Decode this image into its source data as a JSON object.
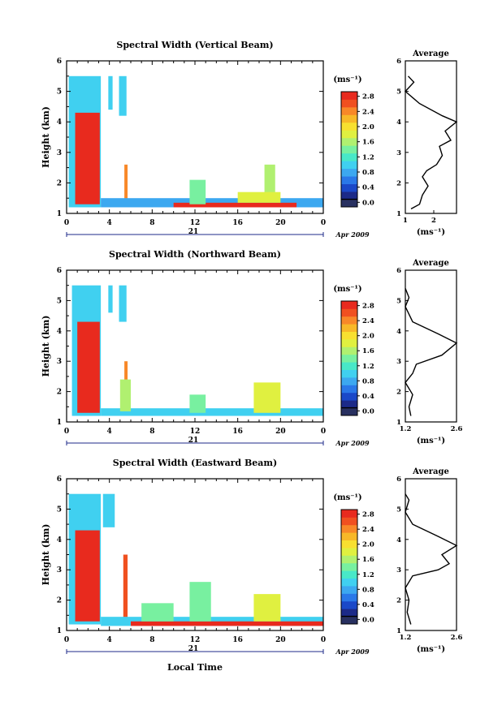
{
  "figure": {
    "x_axis_title": "Local Time",
    "date_label": "21",
    "month_label": "Apr 2009",
    "colorbar_unit": "(ms⁻¹)",
    "average_title": "Average",
    "average_unit": "(ms⁻¹)",
    "colorbar_ticks": [
      "0.0",
      "0.4",
      "0.8",
      "1.2",
      "1.6",
      "2.0",
      "2.4",
      "2.8"
    ],
    "colormap": [
      "#283060",
      "#1c2a88",
      "#1a48c8",
      "#2a78e8",
      "#3ca8f0",
      "#40d0f0",
      "#48e8c8",
      "#78f0a0",
      "#b0f070",
      "#e0f040",
      "#f8e030",
      "#f8b828",
      "#f88828",
      "#f05020",
      "#e82a1e"
    ]
  },
  "chart_data": [
    {
      "type": "heatmap",
      "title": "Spectral Width (Vertical Beam)",
      "ylabel": "Height (km)",
      "xlabel": "Local Time",
      "xlim": [
        0,
        24
      ],
      "ylim": [
        1,
        6
      ],
      "xticks": [
        "0",
        "4",
        "8",
        "12",
        "16",
        "20",
        "0"
      ],
      "yticks": [
        "1",
        "2",
        "3",
        "4",
        "5",
        "6"
      ],
      "colorbar_range": [
        0,
        2.8
      ],
      "regions": [
        {
          "x": [
            0.2,
            3.2
          ],
          "y": [
            1.2,
            5.5
          ],
          "v": 1.0
        },
        {
          "x": [
            0.8,
            3.1
          ],
          "y": [
            1.3,
            4.3
          ],
          "v": 2.8
        },
        {
          "x": [
            3.9,
            4.3
          ],
          "y": [
            4.4,
            5.5
          ],
          "v": 0.9
        },
        {
          "x": [
            4.9,
            5.6
          ],
          "y": [
            4.2,
            5.5
          ],
          "v": 0.9
        },
        {
          "x": [
            5.4,
            5.7
          ],
          "y": [
            1.3,
            2.6
          ],
          "v": 2.4
        },
        {
          "x": [
            3.2,
            24
          ],
          "y": [
            1.2,
            1.5
          ],
          "v": 0.7
        },
        {
          "x": [
            10,
            21.5
          ],
          "y": [
            1.2,
            1.35
          ],
          "v": 2.8
        },
        {
          "x": [
            11.5,
            13
          ],
          "y": [
            1.3,
            2.1
          ],
          "v": 1.4
        },
        {
          "x": [
            18.5,
            19.5
          ],
          "y": [
            1.4,
            2.6
          ],
          "v": 1.6
        },
        {
          "x": [
            16,
            20
          ],
          "y": [
            1.35,
            1.7
          ],
          "v": 1.8
        }
      ],
      "average": {
        "xlim": [
          1,
          2.8
        ],
        "xticks": [
          "1",
          "2"
        ],
        "yticks": [
          "1",
          "2",
          "3",
          "4",
          "5",
          "6"
        ],
        "profile": [
          [
            1.2,
            1.15
          ],
          [
            1.5,
            1.3
          ],
          [
            1.6,
            1.6
          ],
          [
            1.8,
            1.9
          ],
          [
            1.6,
            2.2
          ],
          [
            1.75,
            2.4
          ],
          [
            2.1,
            2.6
          ],
          [
            2.3,
            2.9
          ],
          [
            2.2,
            3.2
          ],
          [
            2.6,
            3.4
          ],
          [
            2.4,
            3.7
          ],
          [
            2.8,
            4.0
          ],
          [
            2.3,
            4.2
          ],
          [
            1.5,
            4.6
          ],
          [
            1.0,
            5.0
          ],
          [
            1.3,
            5.3
          ],
          [
            1.1,
            5.5
          ]
        ]
      }
    },
    {
      "type": "heatmap",
      "title": "Spectral Width (Northward Beam)",
      "ylabel": "Height (km)",
      "xlabel": "Local Time",
      "xlim": [
        0,
        24
      ],
      "ylim": [
        1,
        6
      ],
      "xticks": [
        "0",
        "4",
        "8",
        "12",
        "16",
        "20",
        "0"
      ],
      "yticks": [
        "1",
        "2",
        "3",
        "4",
        "5",
        "6"
      ],
      "colorbar_range": [
        0,
        2.8
      ],
      "regions": [
        {
          "x": [
            0.5,
            3.2
          ],
          "y": [
            1.2,
            5.5
          ],
          "v": 1.0
        },
        {
          "x": [
            1.0,
            3.1
          ],
          "y": [
            1.3,
            4.3
          ],
          "v": 2.8
        },
        {
          "x": [
            3.9,
            4.3
          ],
          "y": [
            4.6,
            5.5
          ],
          "v": 0.9
        },
        {
          "x": [
            4.9,
            5.6
          ],
          "y": [
            4.3,
            5.5
          ],
          "v": 0.9
        },
        {
          "x": [
            5.4,
            5.7
          ],
          "y": [
            1.3,
            3.0
          ],
          "v": 2.4
        },
        {
          "x": [
            3.2,
            24
          ],
          "y": [
            1.2,
            1.45
          ],
          "v": 1.0
        },
        {
          "x": [
            5.0,
            6.0
          ],
          "y": [
            1.35,
            2.4
          ],
          "v": 1.6
        },
        {
          "x": [
            11.5,
            13
          ],
          "y": [
            1.3,
            1.9
          ],
          "v": 1.3
        },
        {
          "x": [
            17.5,
            20
          ],
          "y": [
            1.3,
            2.3
          ],
          "v": 1.8
        }
      ],
      "average": {
        "xlim": [
          1.2,
          2.6
        ],
        "xticks": [
          "1.2",
          "2.6"
        ],
        "yticks": [
          "1",
          "2",
          "3",
          "4",
          "5",
          "6"
        ],
        "profile": [
          [
            1.35,
            1.2
          ],
          [
            1.3,
            1.5
          ],
          [
            1.4,
            1.9
          ],
          [
            1.2,
            2.3
          ],
          [
            1.4,
            2.6
          ],
          [
            1.5,
            2.9
          ],
          [
            2.2,
            3.2
          ],
          [
            2.6,
            3.6
          ],
          [
            2.1,
            3.9
          ],
          [
            1.4,
            4.3
          ],
          [
            1.2,
            4.8
          ],
          [
            1.3,
            5.1
          ],
          [
            1.2,
            5.4
          ]
        ]
      }
    },
    {
      "type": "heatmap",
      "title": "Spectral Width (Eastward Beam)",
      "ylabel": "Height (km)",
      "xlabel": "Local Time",
      "xlim": [
        0,
        24
      ],
      "ylim": [
        1,
        6
      ],
      "xticks": [
        "0",
        "4",
        "8",
        "12",
        "16",
        "20",
        "0"
      ],
      "yticks": [
        "1",
        "2",
        "3",
        "4",
        "5",
        "6"
      ],
      "colorbar_range": [
        0,
        2.8
      ],
      "regions": [
        {
          "x": [
            0.2,
            3.2
          ],
          "y": [
            1.2,
            5.5
          ],
          "v": 1.0
        },
        {
          "x": [
            0.8,
            3.1
          ],
          "y": [
            1.3,
            4.3
          ],
          "v": 2.8
        },
        {
          "x": [
            3.4,
            4.5
          ],
          "y": [
            4.4,
            5.5
          ],
          "v": 0.9
        },
        {
          "x": [
            5.3,
            5.7
          ],
          "y": [
            1.3,
            3.5
          ],
          "v": 2.6
        },
        {
          "x": [
            3.2,
            24
          ],
          "y": [
            1.15,
            1.45
          ],
          "v": 1.0
        },
        {
          "x": [
            6,
            24
          ],
          "y": [
            1.15,
            1.3
          ],
          "v": 2.8
        },
        {
          "x": [
            7,
            10
          ],
          "y": [
            1.3,
            1.9
          ],
          "v": 1.4
        },
        {
          "x": [
            11.5,
            13.5
          ],
          "y": [
            1.3,
            2.6
          ],
          "v": 1.4
        },
        {
          "x": [
            17.5,
            20
          ],
          "y": [
            1.3,
            2.2
          ],
          "v": 1.8
        }
      ],
      "average": {
        "xlim": [
          1.2,
          2.6
        ],
        "xticks": [
          "1.2",
          "2.6"
        ],
        "yticks": [
          "1",
          "2",
          "3",
          "4",
          "5",
          "6"
        ],
        "profile": [
          [
            1.35,
            1.2
          ],
          [
            1.25,
            1.6
          ],
          [
            1.3,
            2.0
          ],
          [
            1.2,
            2.4
          ],
          [
            1.4,
            2.8
          ],
          [
            2.1,
            3.0
          ],
          [
            2.4,
            3.2
          ],
          [
            2.2,
            3.5
          ],
          [
            2.6,
            3.8
          ],
          [
            2.1,
            4.1
          ],
          [
            1.4,
            4.5
          ],
          [
            1.2,
            4.9
          ],
          [
            1.3,
            5.3
          ],
          [
            1.2,
            5.5
          ]
        ]
      }
    }
  ]
}
